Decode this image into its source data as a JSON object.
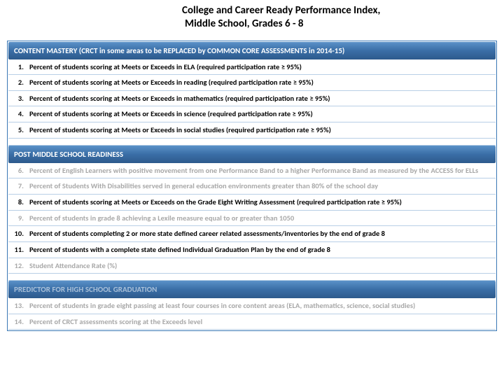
{
  "title": {
    "line1": "College and Career Ready Performance Index,",
    "line2": "Middle School, Grades 6 - 8"
  },
  "colors": {
    "header_gradient_top": "#5a91c8",
    "header_gradient_mid": "#3a6ea6",
    "header_gradient_bot": "#2d5a8c",
    "border": "#3a78b5",
    "row_border": "#b8cfe6",
    "faded_text": "#a8a8a8",
    "text": "#000000",
    "background": "#ffffff"
  },
  "typography": {
    "title_fontsize_pt": 11,
    "header_fontsize_pt": 8,
    "item_fontsize_pt": 8,
    "font_family": "Calibri",
    "title_weight": 700,
    "item_weight": 700
  },
  "sections": [
    {
      "header": "CONTENT MASTERY (CRCT in some areas to be REPLACED by COMMON CORE ASSESSMENTS in 2014-15)",
      "faded": false,
      "items": [
        {
          "num": "1.",
          "text": "Percent of students scoring at Meets or Exceeds in ELA (required participation rate ≥ 95%)",
          "faded": false
        },
        {
          "num": "2.",
          "text": "Percent of students scoring at Meets or Exceeds in reading (required participation rate ≥ 95%)",
          "faded": false
        },
        {
          "num": "3.",
          "text": "Percent of students scoring at Meets or Exceeds in mathematics (required participation rate ≥ 95%)",
          "faded": false
        },
        {
          "num": "4.",
          "text": "Percent of students scoring at Meets or Exceeds in science (required participation rate ≥ 95%)",
          "faded": false
        },
        {
          "num": "5.",
          "text": "Percent of students scoring at Meets or Exceeds in social studies (required participation rate ≥ 95%)",
          "faded": false
        }
      ]
    },
    {
      "header": "POST MIDDLE SCHOOL READINESS",
      "faded": false,
      "items": [
        {
          "num": "6.",
          "text": "Percent of English Learners with positive movement from one Performance Band to a higher Performance Band as measured by the ACCESS for ELLs",
          "faded": true
        },
        {
          "num": "7.",
          "text": "Percent of Students With Disabilities served in general education environments greater than 80% of the school day",
          "faded": true
        },
        {
          "num": "8.",
          "text": "Percent of students scoring at Meets or Exceeds on the Grade Eight Writing Assessment (required participation rate ≥ 95%)",
          "faded": false
        },
        {
          "num": "9.",
          "text": "Percent of students in grade 8 achieving a Lexile measure equal to or greater than 1050",
          "faded": true
        },
        {
          "num": "10.",
          "text": "Percent of students completing 2 or more state defined career related assessments/inventories by the end of grade 8",
          "faded": false
        },
        {
          "num": "11.",
          "text": "Percent of students with a complete state defined Individual Graduation Plan by the end of grade 8",
          "faded": false
        },
        {
          "num": "12.",
          "text": "Student Attendance Rate (%)",
          "faded": true
        }
      ]
    },
    {
      "header": "PREDICTOR FOR HIGH SCHOOL GRADUATION",
      "faded": true,
      "items": [
        {
          "num": "13.",
          "text": "Percent of students in grade eight passing at least four courses in core content areas (ELA, mathematics, science, social studies)",
          "faded": true
        },
        {
          "num": "14.",
          "text": "Percent of CRCT assessments scoring at the Exceeds level",
          "faded": true
        }
      ]
    }
  ]
}
